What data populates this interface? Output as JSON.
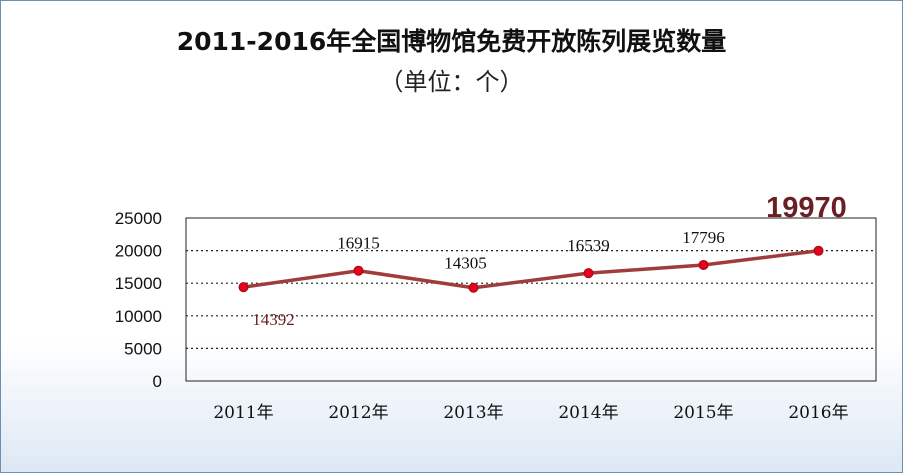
{
  "chart_data": {
    "type": "line",
    "title": "2011-2016年全国博物馆免费开放陈列展览数量",
    "subtitle": "（单位：个）",
    "categories": [
      "2011年",
      "2012年",
      "2013年",
      "2014年",
      "2015年",
      "2016年"
    ],
    "series": [
      {
        "values": [
          14392,
          16915,
          14305,
          16539,
          17796,
          19970
        ]
      }
    ],
    "data_labels": [
      "14392",
      "16915",
      "14305",
      "16539",
      "17796",
      "19970"
    ],
    "y_ticks": [
      "0",
      "5000",
      "10000",
      "15000",
      "20000",
      "25000"
    ],
    "ylim": [
      0,
      25000
    ],
    "grid": "dashed horizontal",
    "line_color": "#a03c3c",
    "marker_color": "#e8001c",
    "highlight_color": "#6b1f24"
  }
}
